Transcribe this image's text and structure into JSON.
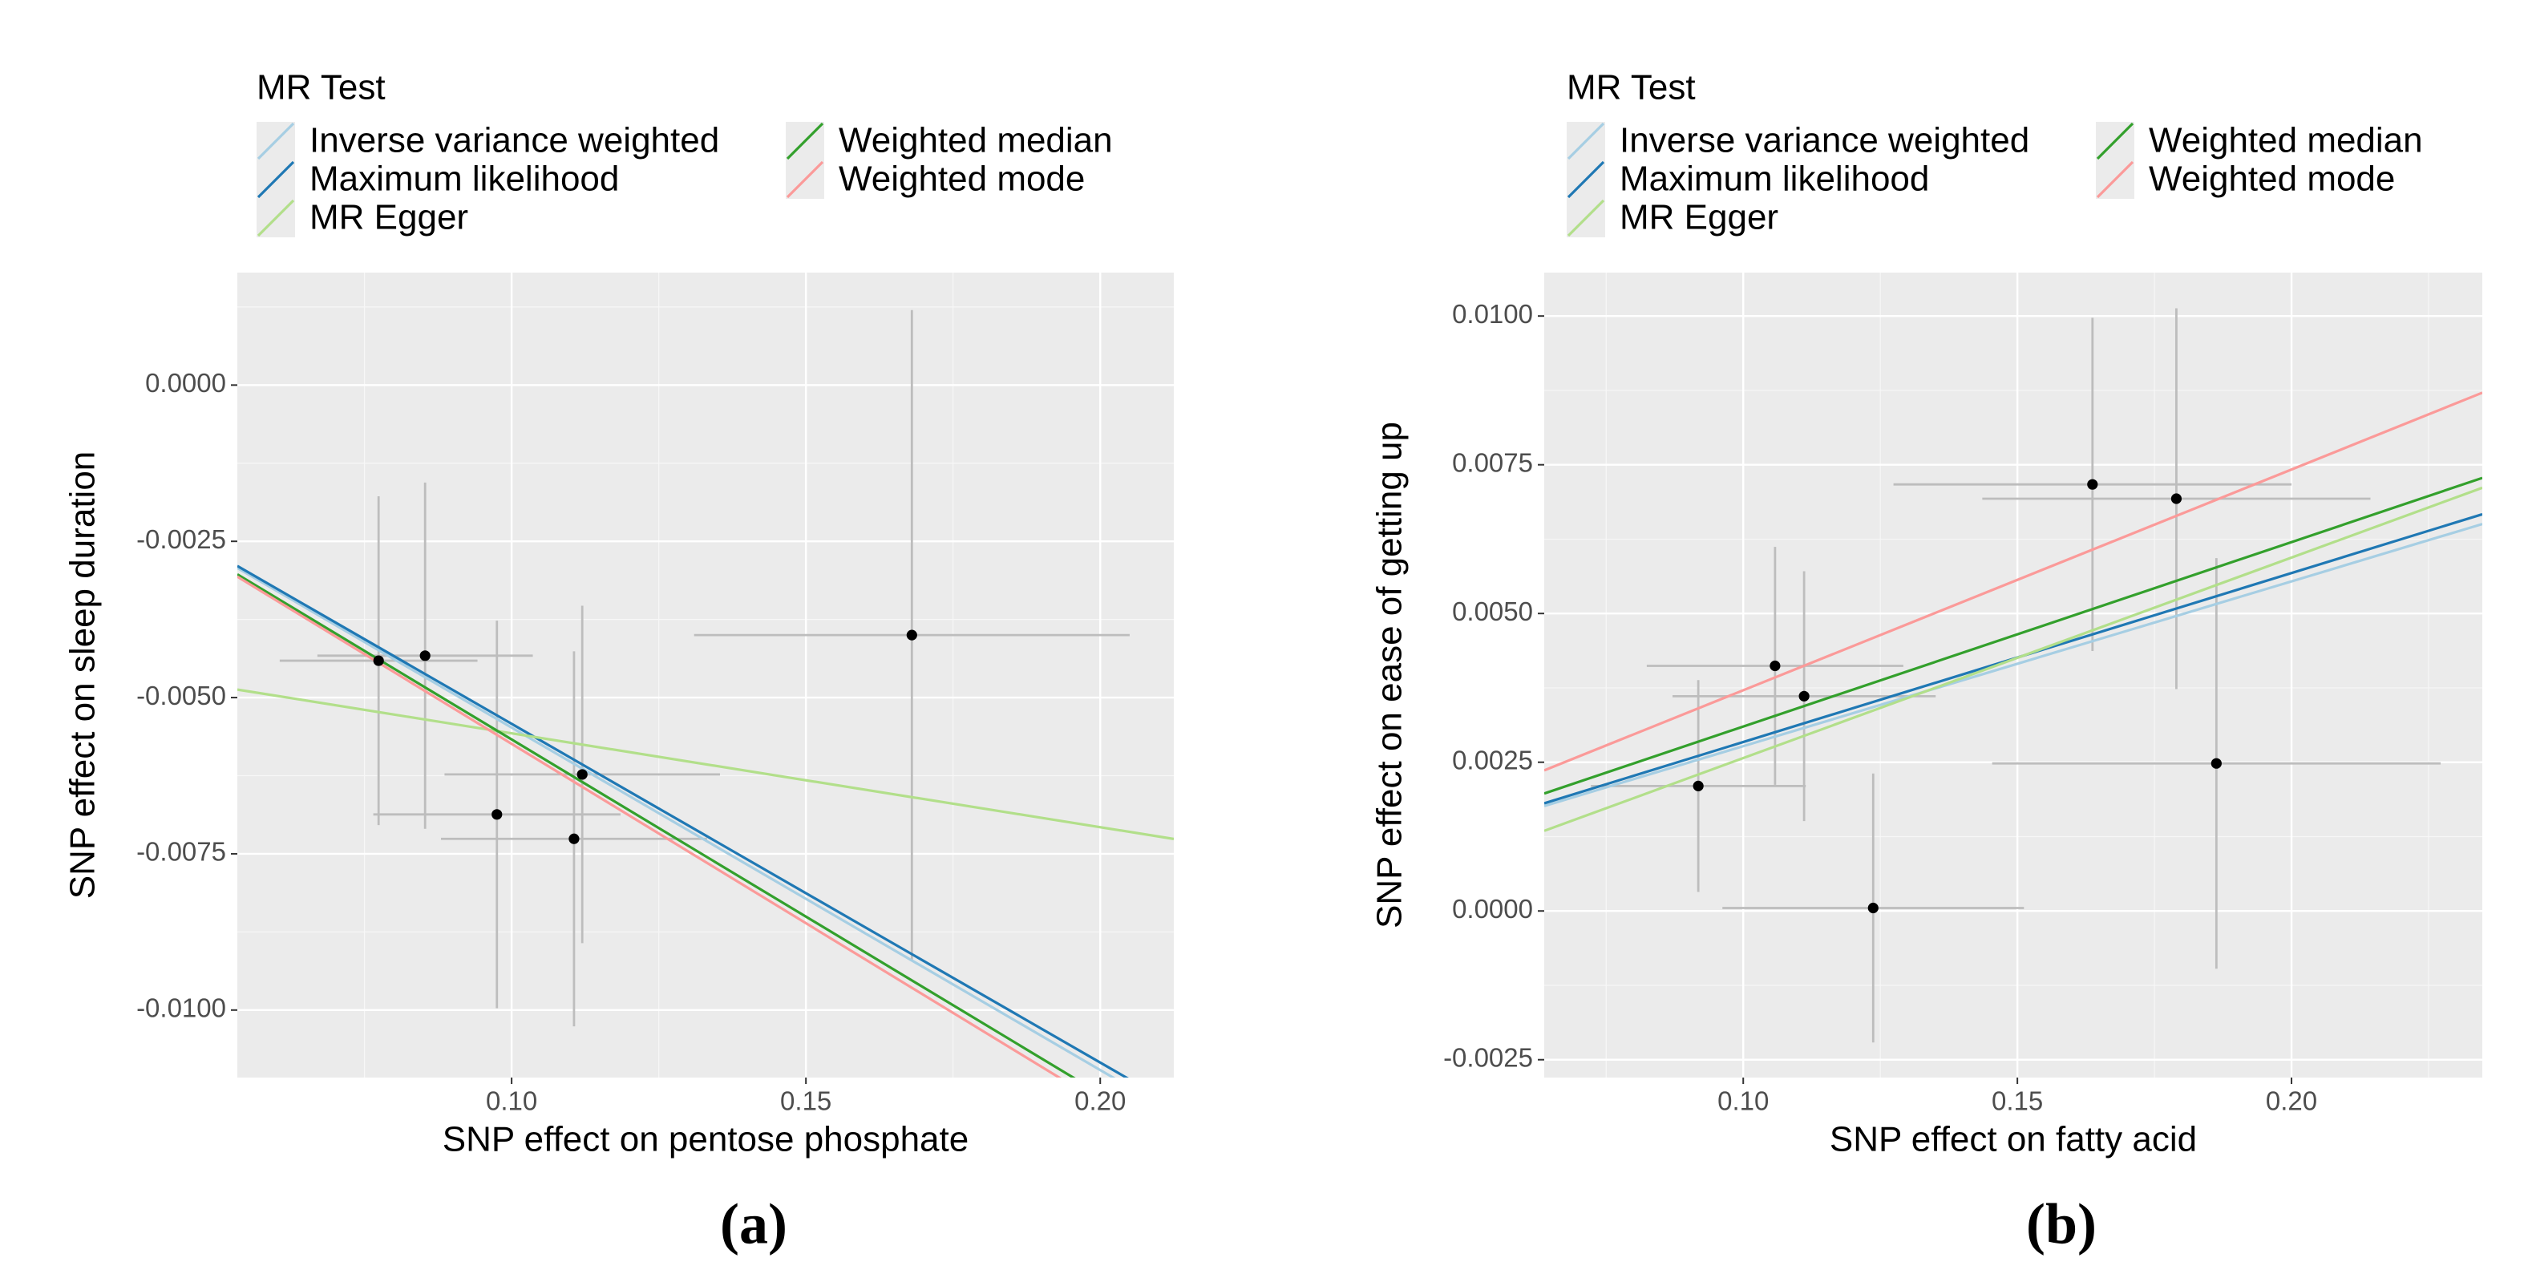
{
  "chart_data": [
    {
      "type": "scatter",
      "caption": "(a)",
      "legend_title": "MR Test",
      "xlabel": "SNP effect on pentose phosphate",
      "ylabel": "SNP effect on sleep duration",
      "x": [
        0.0774,
        0.0853,
        0.0975,
        0.1106,
        0.112,
        0.168
      ],
      "values": [
        -0.00441,
        -0.00433,
        -0.00687,
        -0.00726,
        -0.00623,
        -0.004
      ],
      "x_err": [
        0.0168,
        0.0183,
        0.021,
        0.0226,
        0.0234,
        0.037
      ],
      "y_err": [
        0.00263,
        0.00277,
        0.0031,
        0.003,
        0.0027,
        0.0052
      ],
      "point_color": "#000000",
      "error_color": "#bdbdbd",
      "lines": [
        {
          "name": "Inverse variance weighted",
          "color": "#a6cee3",
          "slope": -0.0548,
          "intercept": 0
        },
        {
          "name": "Maximum likelihood",
          "color": "#1f78b4",
          "slope": -0.0542,
          "intercept": 0
        },
        {
          "name": "MR Egger",
          "color": "#b2df8a",
          "slope": -0.01502,
          "intercept": -0.00407
        },
        {
          "name": "Weighted median",
          "color": "#33a02c",
          "slope": -0.0567,
          "intercept": 0
        },
        {
          "name": "Weighted mode",
          "color": "#fb9a99",
          "slope": -0.0574,
          "intercept": 0
        }
      ],
      "xlim": [
        0.0534,
        0.2125
      ],
      "ylim": [
        -0.01108,
        0.0018
      ],
      "xticks": [
        {
          "value": 0.1,
          "label": "0.10"
        },
        {
          "value": 0.15,
          "label": "0.15"
        },
        {
          "value": 0.2,
          "label": "0.20"
        }
      ],
      "yticks": [
        {
          "value": 0,
          "label": "0.0000"
        },
        {
          "value": -0.0025,
          "label": "-0.0025"
        },
        {
          "value": -0.005,
          "label": "-0.0050"
        },
        {
          "value": -0.0075,
          "label": "-0.0075"
        },
        {
          "value": -0.01,
          "label": "-0.0100"
        }
      ],
      "grid": true
    },
    {
      "type": "scatter",
      "caption": "(b)",
      "legend_title": "MR Test",
      "xlabel": "SNP effect on fatty acid",
      "ylabel": "SNP effect on ease of getting up",
      "x": [
        0.0918,
        0.1058,
        0.1111,
        0.1237,
        0.1637,
        0.179,
        0.1863
      ],
      "values": [
        0.0021,
        0.00412,
        0.00361,
        5e-05,
        0.00717,
        0.00693,
        0.00248
      ],
      "x_err": [
        0.0196,
        0.0234,
        0.024,
        0.0275,
        0.0363,
        0.0354,
        0.0409
      ],
      "y_err": [
        0.00178,
        0.002,
        0.0021,
        0.00226,
        0.0028,
        0.0032,
        0.00345
      ],
      "point_color": "#000000",
      "error_color": "#bdbdbd",
      "lines": [
        {
          "name": "Inverse variance weighted",
          "color": "#a6cee3",
          "slope": 0.0277,
          "intercept": 0
        },
        {
          "name": "Maximum likelihood",
          "color": "#1f78b4",
          "slope": 0.0284,
          "intercept": 0
        },
        {
          "name": "MR Egger",
          "color": "#b2df8a",
          "slope": 0.0337,
          "intercept": -0.0008
        },
        {
          "name": "Weighted median",
          "color": "#33a02c",
          "slope": 0.031,
          "intercept": 0
        },
        {
          "name": "Weighted mode",
          "color": "#fb9a99",
          "slope": 0.0371,
          "intercept": 0
        }
      ],
      "xlim": [
        0.0637,
        0.2348
      ],
      "ylim": [
        -0.0028,
        0.01073
      ],
      "xticks": [
        {
          "value": 0.1,
          "label": "0.10"
        },
        {
          "value": 0.15,
          "label": "0.15"
        },
        {
          "value": 0.2,
          "label": "0.20"
        }
      ],
      "yticks": [
        {
          "value": 0.01,
          "label": "0.0100"
        },
        {
          "value": 0.0075,
          "label": "0.0075"
        },
        {
          "value": 0.005,
          "label": "0.0050"
        },
        {
          "value": 0.0025,
          "label": "0.0025"
        },
        {
          "value": 0,
          "label": "0.0000"
        },
        {
          "value": -0.0025,
          "label": "-0.0025"
        }
      ],
      "grid": true
    }
  ]
}
